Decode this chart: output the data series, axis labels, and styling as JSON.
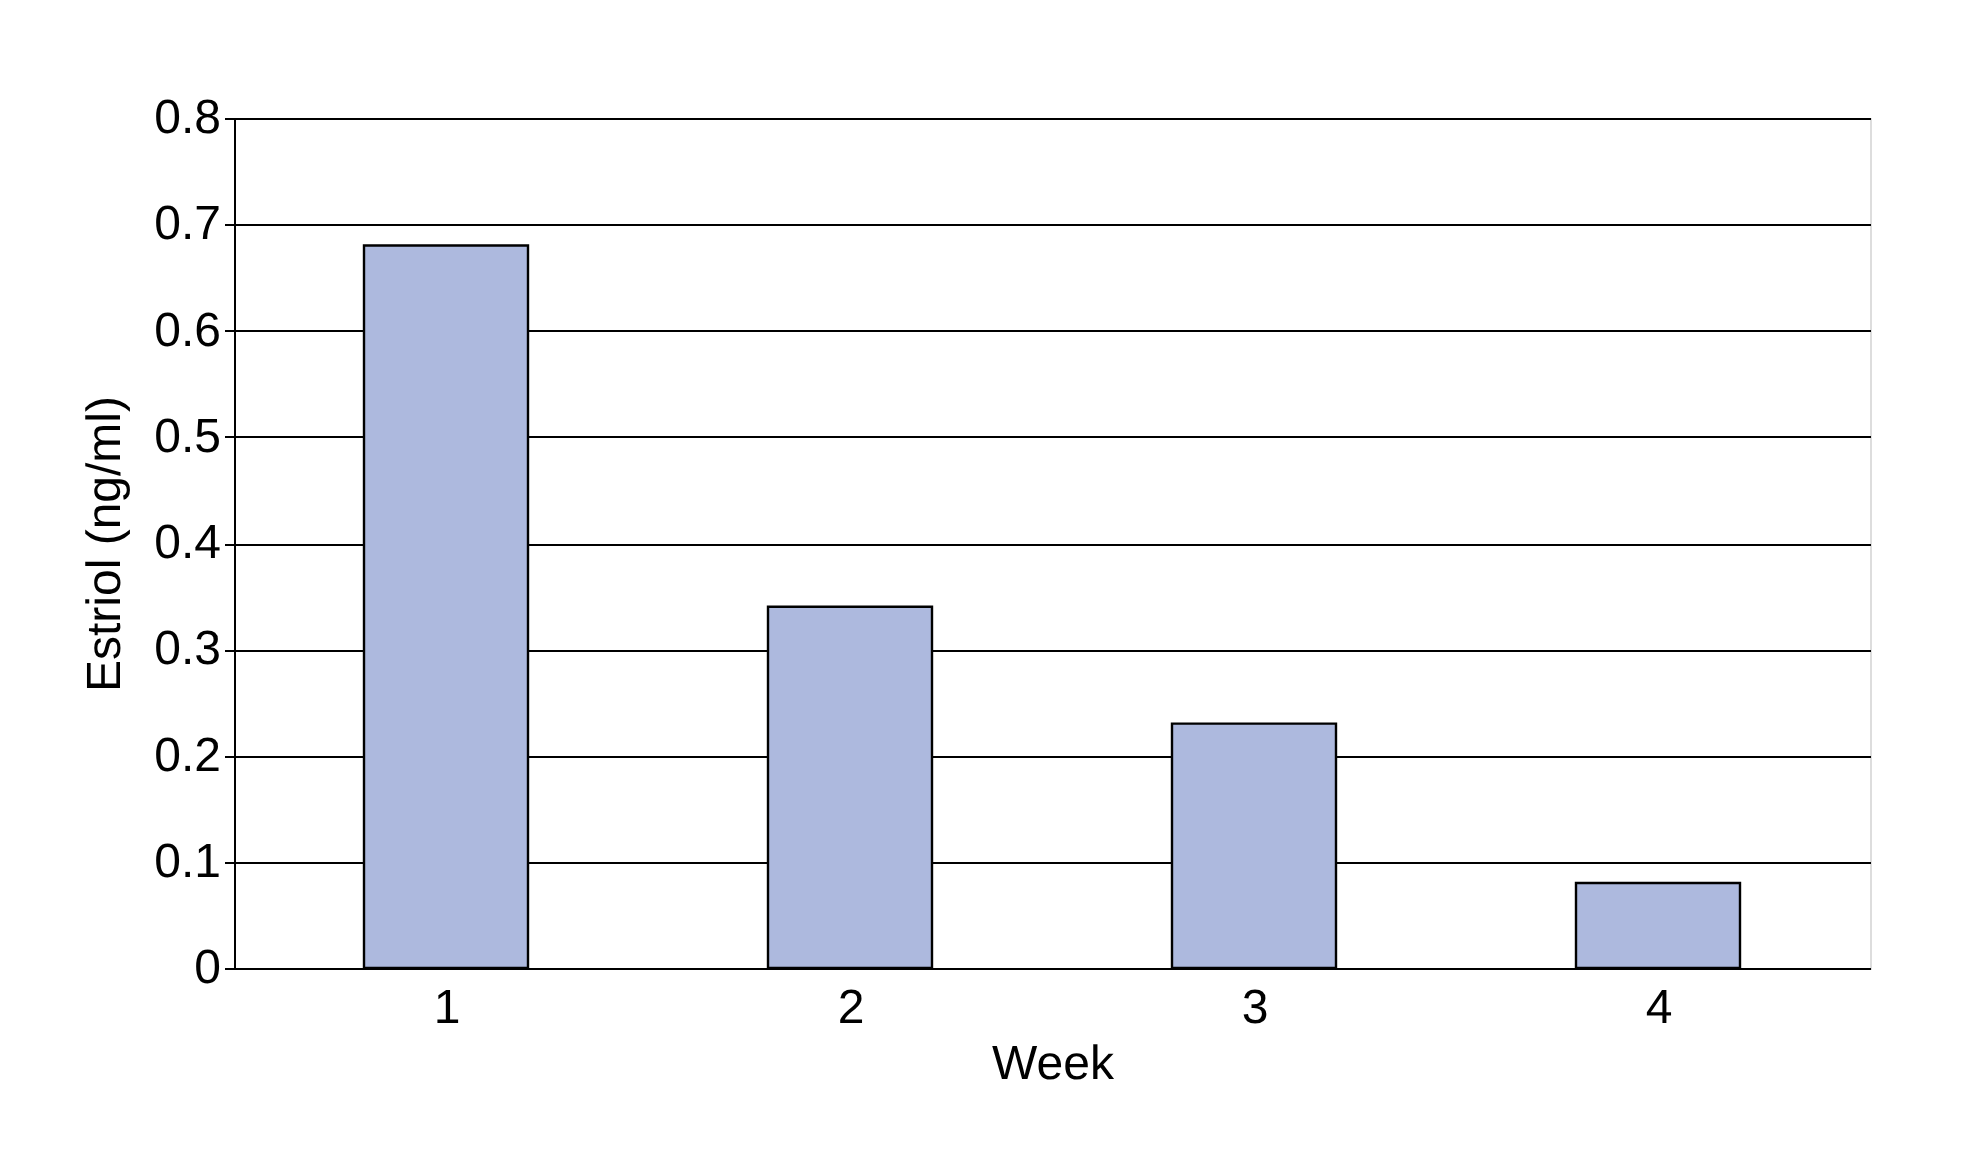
{
  "chart_data": {
    "type": "bar",
    "xlabel": "Week",
    "ylabel": "Estriol (ng/ml)",
    "categories": [
      "1",
      "2",
      "3",
      "4"
    ],
    "values": [
      0.68,
      0.34,
      0.23,
      0.08
    ],
    "color": "#adb9de",
    "ylim": [
      0,
      0.8
    ],
    "yticks": [
      0,
      0.1,
      0.2,
      0.3,
      0.4,
      0.5,
      0.6,
      0.7,
      0.8
    ],
    "grid": "y"
  }
}
